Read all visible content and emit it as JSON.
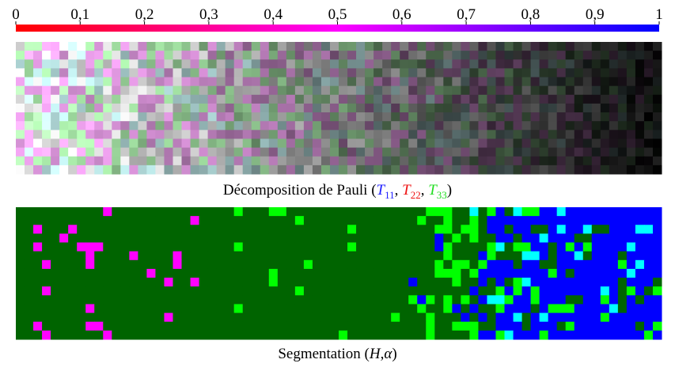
{
  "colorbar": {
    "range": [
      0,
      1
    ],
    "colors": [
      "#ff0000",
      "#ff00ff",
      "#0000ff"
    ],
    "ticks": [
      0,
      {
        "value": 0.1,
        "label": "0,1"
      },
      {
        "value": 0.2,
        "label": "0,2"
      },
      {
        "value": 0.3,
        "label": "0,3"
      },
      {
        "value": 0.4,
        "label": "0,4"
      },
      {
        "value": 0.5,
        "label": "0,5"
      },
      {
        "value": 0.6,
        "label": "0,6"
      },
      {
        "value": 0.7,
        "label": "0,7"
      },
      {
        "value": 0.8,
        "label": "0,8"
      },
      {
        "value": 0.9,
        "label": "0,9"
      },
      1
    ]
  },
  "pauli_caption": {
    "prefix": "Décomposition de Pauli (",
    "separator": ", ",
    "suffix": ")",
    "terms": [
      {
        "symbol": "T",
        "subscript": "11",
        "color": "#2020ff"
      },
      {
        "symbol": "T",
        "subscript": "22",
        "color": "#ee1111"
      },
      {
        "symbol": "T",
        "subscript": "33",
        "color": "#22dd22"
      }
    ]
  },
  "segmentation_caption": {
    "prefix": "Segmentation (",
    "H": "H",
    "comma": ",",
    "alpha": "α",
    "suffix": ")"
  }
}
